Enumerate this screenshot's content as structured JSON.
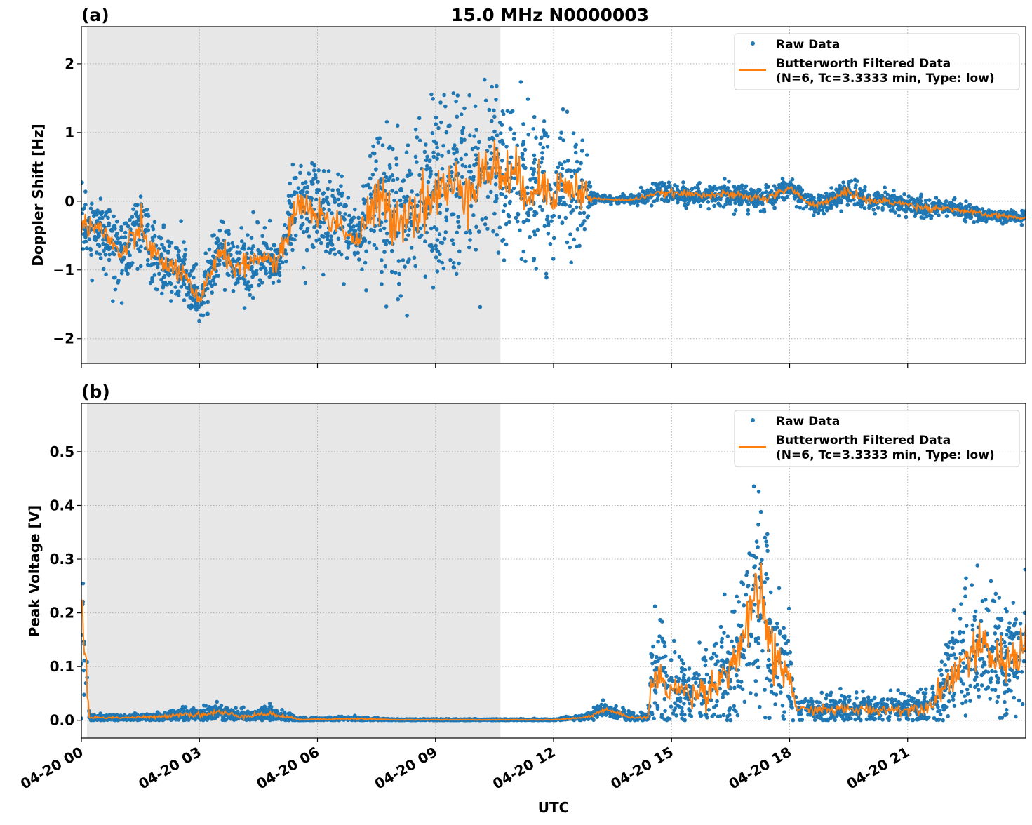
{
  "title": "15.0 MHz N0000003",
  "chart_data": [
    {
      "type": "scatter",
      "panel_label": "(a)",
      "title": "15.0 MHz N0000003",
      "xlabel": "",
      "ylabel": "Doppler Shift [Hz]",
      "xlim_hours": [
        0,
        24
      ],
      "ylim": [
        -2.36,
        2.54
      ],
      "yticks": [
        -2,
        -1,
        0,
        1,
        2
      ],
      "ytick_labels": [
        "−2",
        "−1",
        "0",
        "1",
        "2"
      ],
      "grid": true,
      "legend_position": "top-right",
      "night_shading_hours": [
        0.14,
        10.65
      ],
      "series": [
        {
          "name": "Raw Data",
          "color": "#1f77b4",
          "x": [
            0,
            0.5,
            1,
            1.5,
            2,
            2.5,
            3,
            3.5,
            4,
            4.5,
            5,
            5.5,
            6,
            6.5,
            7,
            7.5,
            8,
            8.5,
            9,
            9.5,
            10,
            10.5,
            11,
            11.5,
            12,
            12.5,
            12.8,
            13,
            13.5,
            14,
            14.5,
            15,
            15.5,
            16,
            16.5,
            17,
            17.5,
            18,
            18.5,
            19,
            19.5,
            20,
            20.5,
            21,
            21.5,
            22,
            22.5,
            23,
            23.5,
            24
          ],
          "spread": [
            0.3,
            0.35,
            0.35,
            0.45,
            0.35,
            0.35,
            0.3,
            0.4,
            0.35,
            0.3,
            0.3,
            0.45,
            0.5,
            0.45,
            0.4,
            0.8,
            0.9,
            0.9,
            0.9,
            0.9,
            0.9,
            0.9,
            0.8,
            0.8,
            0.7,
            0.6,
            0.5,
            0.05,
            0.04,
            0.04,
            0.08,
            0.1,
            0.1,
            0.1,
            0.12,
            0.12,
            0.12,
            0.12,
            0.1,
            0.1,
            0.15,
            0.12,
            0.1,
            0.1,
            0.1,
            0.08,
            0.08,
            0.07,
            0.07,
            0.07
          ]
        },
        {
          "name": "Butterworth Filtered Data\n(N=6, Tc=3.3333 min, Type: low)",
          "color": "#ff7f0e",
          "x": [
            0,
            0.5,
            1,
            1.5,
            2,
            2.5,
            3,
            3.5,
            4,
            4.5,
            5,
            5.5,
            6,
            6.5,
            7,
            7.5,
            8,
            8.5,
            9,
            9.5,
            10,
            10.5,
            11,
            11.5,
            12,
            12.5,
            12.8,
            13,
            13.5,
            14,
            14.5,
            15,
            15.5,
            16,
            16.5,
            17,
            17.5,
            18,
            18.5,
            19,
            19.5,
            20,
            20.5,
            21,
            21.5,
            22,
            22.5,
            23,
            23.5,
            24
          ],
          "y": [
            -0.3,
            -0.4,
            -0.8,
            -0.4,
            -0.9,
            -1.0,
            -1.5,
            -0.7,
            -1.0,
            -0.8,
            -0.9,
            0.0,
            -0.2,
            -0.3,
            -0.6,
            0.0,
            -0.2,
            -0.1,
            0.1,
            0.2,
            0.3,
            0.5,
            0.3,
            0.2,
            0.2,
            0.2,
            0.1,
            0.04,
            0.02,
            0.02,
            0.1,
            0.12,
            0.1,
            0.1,
            0.1,
            0.05,
            0.05,
            0.2,
            -0.05,
            0.0,
            0.15,
            0.0,
            0.0,
            -0.05,
            -0.1,
            -0.1,
            -0.15,
            -0.2,
            -0.22,
            -0.25
          ]
        }
      ]
    },
    {
      "type": "scatter",
      "panel_label": "(b)",
      "xlabel": "UTC",
      "ylabel": "Peak Voltage [V]",
      "xlim_hours": [
        0,
        24
      ],
      "ylim": [
        -0.033,
        0.59
      ],
      "yticks": [
        0.0,
        0.1,
        0.2,
        0.3,
        0.4,
        0.5
      ],
      "ytick_labels": [
        "0.0",
        "0.1",
        "0.2",
        "0.3",
        "0.4",
        "0.5"
      ],
      "xticks_hours": [
        0,
        3,
        6,
        9,
        12,
        15,
        18,
        21
      ],
      "xtick_labels": [
        "04-20 00",
        "04-20 03",
        "04-20 06",
        "04-20 09",
        "04-20 12",
        "04-20 15",
        "04-20 18",
        "04-20 21"
      ],
      "grid": true,
      "legend_position": "top-right",
      "night_shading_hours": [
        0.14,
        10.65
      ],
      "series": [
        {
          "name": "Raw Data",
          "color": "#1f77b4",
          "x": [
            0,
            0.1,
            0.2,
            0.5,
            1,
            2,
            2.5,
            3,
            3.5,
            4,
            4.8,
            5.5,
            6,
            7,
            8,
            10,
            12,
            12.8,
            13.3,
            14,
            14.4,
            14.5,
            15,
            15.5,
            16,
            16.5,
            17,
            17.3,
            17.5,
            18,
            18.2,
            18.5,
            19,
            20,
            21,
            21.5,
            22,
            22.5,
            23,
            23.5,
            24
          ],
          "spread": [
            0.12,
            0.1,
            0.004,
            0.004,
            0.004,
            0.006,
            0.01,
            0.01,
            0.012,
            0.008,
            0.01,
            0.003,
            0.002,
            0.003,
            0.001,
            0.001,
            0.001,
            0.005,
            0.01,
            0.004,
            0.004,
            0.07,
            0.06,
            0.05,
            0.06,
            0.08,
            0.12,
            0.15,
            0.1,
            0.08,
            0.015,
            0.015,
            0.02,
            0.02,
            0.02,
            0.025,
            0.06,
            0.08,
            0.09,
            0.08,
            0.09
          ]
        },
        {
          "name": "Butterworth Filtered Data\n(N=6, Tc=3.3333 min, Type: low)",
          "color": "#ff7f0e",
          "x": [
            0,
            0.1,
            0.2,
            0.5,
            1,
            2,
            2.5,
            3,
            3.5,
            4,
            4.8,
            5.5,
            6,
            7,
            8,
            10,
            12,
            12.8,
            13.3,
            14,
            14.4,
            14.5,
            15,
            15.5,
            16,
            16.5,
            17,
            17.3,
            17.5,
            18,
            18.2,
            18.5,
            19,
            20,
            21,
            21.5,
            22,
            22.5,
            23,
            23.5,
            24
          ],
          "y": [
            0.2,
            0.12,
            0.005,
            0.005,
            0.005,
            0.006,
            0.012,
            0.01,
            0.015,
            0.008,
            0.012,
            0.002,
            0.002,
            0.003,
            0.001,
            0.001,
            0.001,
            0.005,
            0.02,
            0.005,
            0.005,
            0.08,
            0.06,
            0.05,
            0.06,
            0.1,
            0.18,
            0.25,
            0.12,
            0.08,
            0.02,
            0.02,
            0.02,
            0.02,
            0.02,
            0.025,
            0.07,
            0.12,
            0.13,
            0.1,
            0.15
          ]
        }
      ]
    }
  ]
}
